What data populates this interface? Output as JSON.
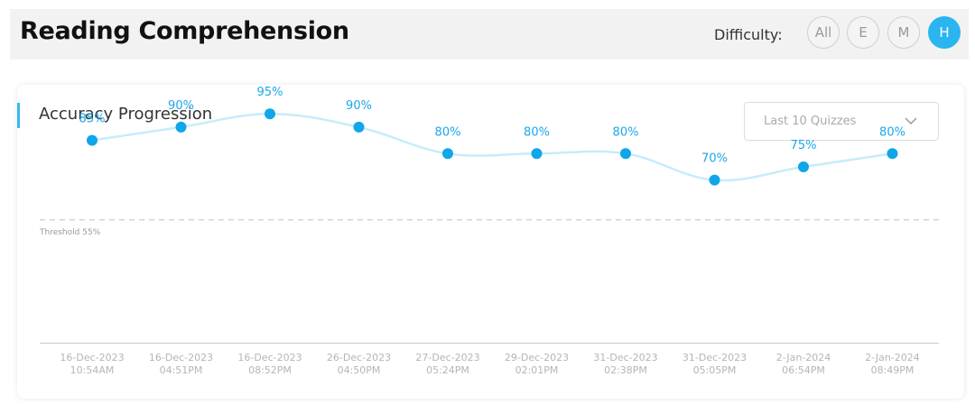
{
  "header": {
    "title": "Reading Comprehension",
    "difficulty_label": "Difficulty:",
    "difficulty_options": [
      "All",
      "E",
      "M",
      "H"
    ],
    "active_difficulty": "H"
  },
  "card": {
    "title": "Accuracy Progression",
    "dropdown_value": "Last 10 Quizzes"
  },
  "chart_data": {
    "type": "line",
    "title": "Accuracy Progression",
    "x": [
      [
        "16-Dec-2023",
        "10:54AM"
      ],
      [
        "16-Dec-2023",
        "04:51PM"
      ],
      [
        "16-Dec-2023",
        "08:52PM"
      ],
      [
        "26-Dec-2023",
        "04:50PM"
      ],
      [
        "27-Dec-2023",
        "05:24PM"
      ],
      [
        "29-Dec-2023",
        "02:01PM"
      ],
      [
        "31-Dec-2023",
        "02:38PM"
      ],
      [
        "31-Dec-2023",
        "05:05PM"
      ],
      [
        "2-Jan-2024",
        "06:54PM"
      ],
      [
        "2-Jan-2024",
        "08:49PM"
      ]
    ],
    "series": [
      {
        "values": [
          85,
          90,
          95,
          90,
          80,
          80,
          80,
          70,
          75,
          80
        ]
      }
    ],
    "value_labels": [
      "85%",
      "90%",
      "95%",
      "90%",
      "80%",
      "80%",
      "80%",
      "70%",
      "75%",
      "80%"
    ],
    "threshold": {
      "value": 55,
      "label": "Threshold 55%"
    },
    "grid": false,
    "colors": {
      "line": "#c6ecfb",
      "point": "#0fa6ea",
      "label": "#1aa7e8",
      "threshold": "#cccccc",
      "axis": "#cfcfcf",
      "tick": "#b5b5b5"
    }
  }
}
